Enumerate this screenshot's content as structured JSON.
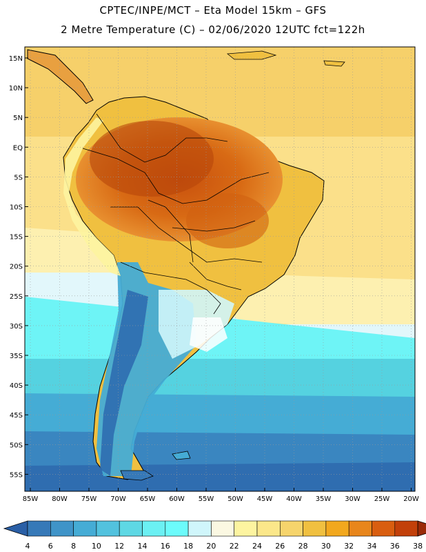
{
  "header": {
    "line1": "CPTEC/INPE/MCT  –  Eta Model 15km  –  GFS",
    "line2": "2 Metre Temperature (C)  –  02/06/2020 12UTC fct=122h"
  },
  "axes": {
    "lat_labels": [
      "15N",
      "10N",
      "5N",
      "EQ",
      "5S",
      "10S",
      "15S",
      "20S",
      "25S",
      "30S",
      "35S",
      "40S",
      "45S",
      "50S",
      "55S"
    ],
    "lon_labels": [
      "85W",
      "80W",
      "75W",
      "70W",
      "65W",
      "60W",
      "55W",
      "50W",
      "45W",
      "40W",
      "35W",
      "30W",
      "25W",
      "20W"
    ]
  },
  "colorbar": {
    "ticks": [
      "4",
      "6",
      "8",
      "10",
      "12",
      "14",
      "16",
      "18",
      "20",
      "22",
      "24",
      "26",
      "28",
      "30",
      "32",
      "34",
      "36",
      "38"
    ],
    "colors": [
      "#2a5fa6",
      "#3679b8",
      "#3f94c8",
      "#45acd5",
      "#52c2de",
      "#5ed8e4",
      "#6bf0f3",
      "#6cfbfb",
      "#d0f6fb",
      "#fbf8e2",
      "#fdf4a0",
      "#fbe78a",
      "#f6d46c",
      "#f0c040",
      "#f2a81e",
      "#e8861c",
      "#d95e10",
      "#c2400a",
      "#9a2a08"
    ]
  }
}
